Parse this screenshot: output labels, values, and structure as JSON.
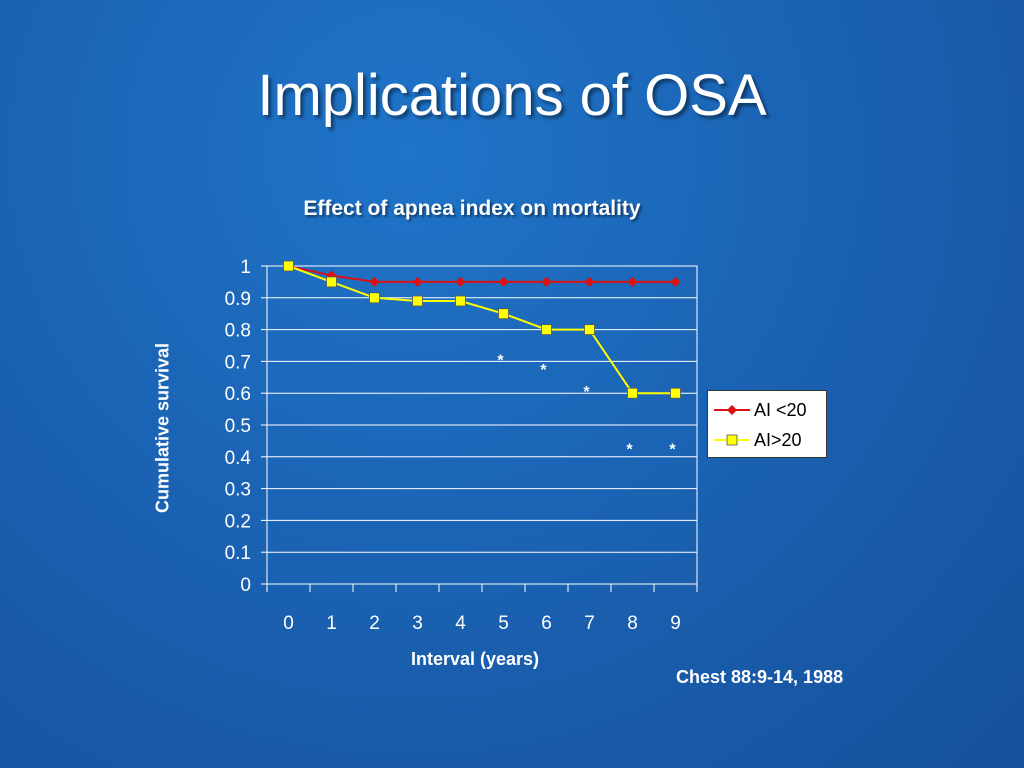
{
  "slide": {
    "title": "Implications of OSA",
    "citation": "Chest 88:9-14, 1988"
  },
  "chart_data": {
    "type": "line",
    "title": "Effect of apnea index on mortality",
    "xlabel": "Interval (years)",
    "ylabel": "Cumulative survival",
    "x": [
      0,
      1,
      2,
      3,
      4,
      5,
      6,
      7,
      8,
      9
    ],
    "ylim": [
      0,
      1
    ],
    "yticks": [
      "0",
      "0.1",
      "0.2",
      "0.3",
      "0.4",
      "0.5",
      "0.6",
      "0.7",
      "0.8",
      "0.9",
      "1"
    ],
    "xticks": [
      "0",
      "1",
      "2",
      "3",
      "4",
      "5",
      "6",
      "7",
      "8",
      "9"
    ],
    "grid": "horizontal",
    "legend_position": "right",
    "series": [
      {
        "name": "AI <20",
        "color": "#dd1111",
        "marker": "diamond",
        "values": [
          1.0,
          0.97,
          0.95,
          0.95,
          0.95,
          0.95,
          0.95,
          0.95,
          0.95,
          0.95
        ]
      },
      {
        "name": "AI>20",
        "color": "#ffff00",
        "marker": "square",
        "values": [
          1.0,
          0.95,
          0.9,
          0.89,
          0.89,
          0.85,
          0.8,
          0.8,
          0.6,
          0.6
        ]
      }
    ],
    "annotations": [
      {
        "text": "*",
        "x": 5,
        "y": 0.7
      },
      {
        "text": "*",
        "x": 6,
        "y": 0.67
      },
      {
        "text": "*",
        "x": 7,
        "y": 0.6
      },
      {
        "text": "*",
        "x": 8,
        "y": 0.42
      },
      {
        "text": "*",
        "x": 9,
        "y": 0.42
      }
    ]
  }
}
